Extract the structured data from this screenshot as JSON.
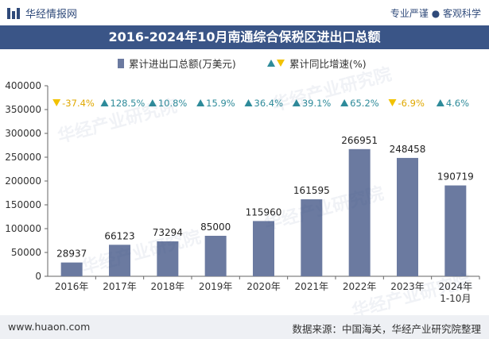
{
  "header": {
    "brand": "华经情报网",
    "tagline": "专业严谨 ● 客观科学"
  },
  "chart_data": {
    "type": "bar",
    "title": "2016-2024年10月南通综合保税区进出口总额",
    "categories": [
      "2016年",
      "2017年",
      "2018年",
      "2019年",
      "2020年",
      "2021年",
      "2022年",
      "2023年",
      "2024年\n1-10月"
    ],
    "series": [
      {
        "name": "累计进出口总额(万美元)",
        "values": [
          28937,
          66123,
          73294,
          85000,
          115960,
          161595,
          266951,
          248458,
          190719
        ],
        "value_labels": [
          "28937",
          "66123",
          "73294",
          "85000",
          "115960",
          "161595",
          "266951",
          "248458",
          "190719"
        ]
      },
      {
        "name": "累计同比增速(%)",
        "values": [
          -37.4,
          128.5,
          10.8,
          15.9,
          36.4,
          39.1,
          65.2,
          -6.9,
          4.6
        ],
        "value_labels": [
          "-37.4%",
          "128.5%",
          "10.8%",
          "15.9%",
          "36.4%",
          "39.1%",
          "65.2%",
          "-6.9%",
          "4.6%"
        ]
      }
    ],
    "ylim": [
      0,
      400000
    ],
    "yticks": [
      "0",
      "50000",
      "100000",
      "150000",
      "200000",
      "250000",
      "300000",
      "350000",
      "400000"
    ],
    "colors": {
      "bar": "#6b7aa0",
      "up": "#2e8b9a",
      "down": "#f2c200",
      "title_bg": "#3a5587"
    },
    "legend_position": "top-center",
    "grid": false
  },
  "footer": {
    "url": "www.huaon.com",
    "source": "数据来源：中国海关，华经产业研究院整理"
  },
  "watermark": "华经产业研究院"
}
